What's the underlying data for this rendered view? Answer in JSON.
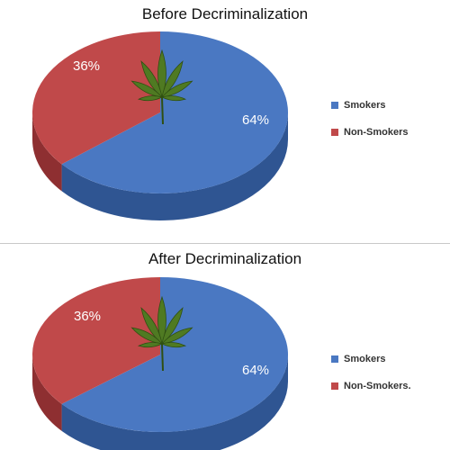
{
  "colors": {
    "smokers": "#4a78c2",
    "smokers_side": "#2f5592",
    "non_smokers": "#c0494a",
    "non_smokers_side": "#8e2f31",
    "leaf": "#4f7a22",
    "leaf_dark": "#2f4f12"
  },
  "chart_data": [
    {
      "type": "pie",
      "title": "Before Decriminalization",
      "slices": [
        {
          "name": "Smokers",
          "value": 64,
          "label": "64%"
        },
        {
          "name": "Non-Smokers",
          "value": 36,
          "label": "36%"
        }
      ],
      "legend_position": "right",
      "legend": [
        "Smokers",
        "Non-Smokers"
      ]
    },
    {
      "type": "pie",
      "title": "After Decriminalization",
      "slices": [
        {
          "name": "Smokers",
          "value": 64,
          "label": "64%"
        },
        {
          "name": "Non-Smokers",
          "value": 36,
          "label": "36%"
        }
      ],
      "legend_position": "right",
      "legend": [
        "Smokers",
        "Non-Smokers."
      ]
    }
  ]
}
